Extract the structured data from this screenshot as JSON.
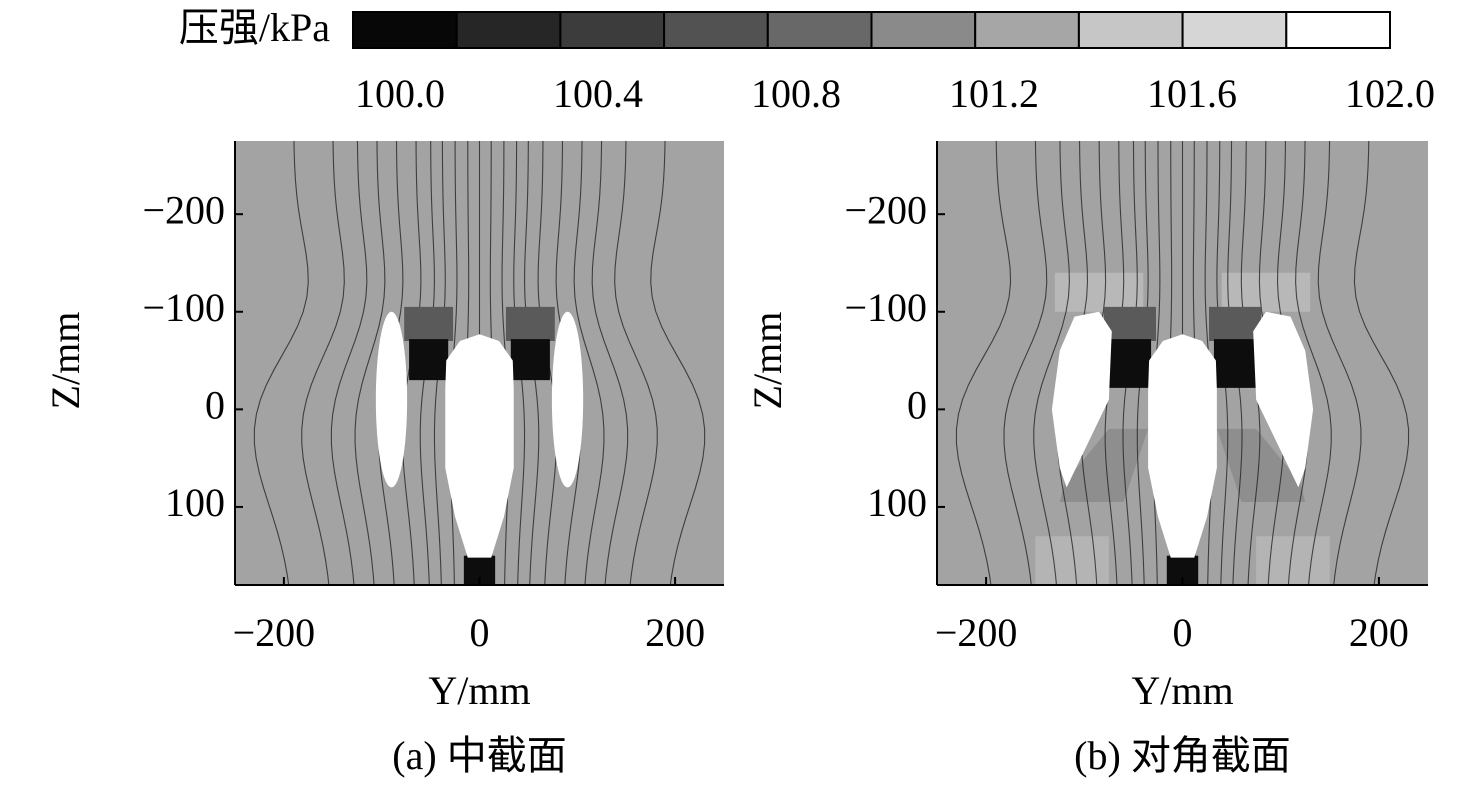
{
  "colorbar": {
    "label": "压强/kPa",
    "clim": [
      100.0,
      102.0
    ],
    "colors": [
      "#070707",
      "#262626",
      "#3c3c3c",
      "#525252",
      "#686868",
      "#8a8a8a",
      "#a6a6a6",
      "#c6c6c6",
      "#d6d6d6",
      "#ffffff"
    ],
    "ticks": [
      {
        "value": 100.0,
        "label": "100.0"
      },
      {
        "value": 100.4,
        "label": "100.4"
      },
      {
        "value": 100.8,
        "label": "100.8"
      },
      {
        "value": 101.2,
        "label": "101.2"
      },
      {
        "value": 101.6,
        "label": "101.6"
      },
      {
        "value": 102.0,
        "label": "102.0"
      }
    ]
  },
  "chart_data": [
    {
      "type": "contour",
      "caption": "(a) 中截面",
      "xlabel": "Y/mm",
      "ylabel": "Z/mm",
      "xlim": [
        -250,
        250
      ],
      "ylim": [
        -275,
        180
      ],
      "y_inverted": true,
      "xticks": [
        {
          "value": -200,
          "label": "−200"
        },
        0,
        200
      ],
      "yticks": [
        {
          "value": -200,
          "label": "−200"
        },
        {
          "value": -100,
          "label": "−100"
        },
        0,
        100
      ]
    },
    {
      "type": "contour",
      "caption": "(b) 对角截面",
      "xlabel": "Y/mm",
      "ylabel": "Z/mm",
      "xlim": [
        -250,
        250
      ],
      "ylim": [
        -275,
        180
      ],
      "y_inverted": true,
      "xticks": [
        {
          "value": -200,
          "label": "−200"
        },
        0,
        200
      ],
      "yticks": [
        {
          "value": -200,
          "label": "−200"
        },
        {
          "value": -100,
          "label": "−100"
        },
        0,
        100
      ]
    }
  ]
}
